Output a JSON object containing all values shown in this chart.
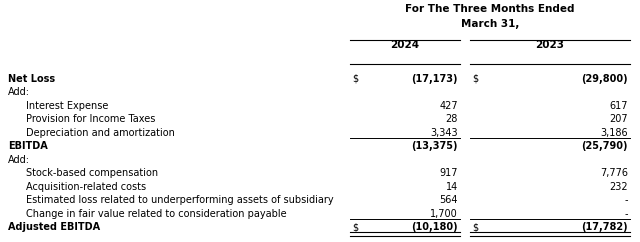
{
  "title_line1": "For The Three Months Ended",
  "title_line2": "March 31,",
  "col_headers": [
    "2024",
    "2023"
  ],
  "rows": [
    {
      "label": "Net Loss",
      "bold": true,
      "indent": 0,
      "val2024": "(17,173)",
      "val2023": "(29,800)",
      "dollar2024": true,
      "dollar2023": true,
      "line_below": false
    },
    {
      "label": "Add:",
      "bold": false,
      "indent": 0,
      "val2024": "",
      "val2023": "",
      "dollar2024": false,
      "dollar2023": false,
      "line_below": false
    },
    {
      "label": "Interest Expense",
      "bold": false,
      "indent": 1,
      "val2024": "427",
      "val2023": "617",
      "dollar2024": false,
      "dollar2023": false,
      "line_below": false
    },
    {
      "label": "Provision for Income Taxes",
      "bold": false,
      "indent": 1,
      "val2024": "28",
      "val2023": "207",
      "dollar2024": false,
      "dollar2023": false,
      "line_below": false
    },
    {
      "label": "Depreciation and amortization",
      "bold": false,
      "indent": 1,
      "val2024": "3,343",
      "val2023": "3,186",
      "dollar2024": false,
      "dollar2023": false,
      "line_below": true
    },
    {
      "label": "EBITDA",
      "bold": true,
      "indent": 0,
      "val2024": "(13,375)",
      "val2023": "(25,790)",
      "dollar2024": false,
      "dollar2023": false,
      "line_below": false
    },
    {
      "label": "Add:",
      "bold": false,
      "indent": 0,
      "val2024": "",
      "val2023": "",
      "dollar2024": false,
      "dollar2023": false,
      "line_below": false
    },
    {
      "label": "Stock-based compensation",
      "bold": false,
      "indent": 1,
      "val2024": "917",
      "val2023": "7,776",
      "dollar2024": false,
      "dollar2023": false,
      "line_below": false
    },
    {
      "label": "Acquisition-related costs",
      "bold": false,
      "indent": 1,
      "val2024": "14",
      "val2023": "232",
      "dollar2024": false,
      "dollar2023": false,
      "line_below": false
    },
    {
      "label": "Estimated loss related to underperforming assets of subsidiary",
      "bold": false,
      "indent": 1,
      "val2024": "564",
      "val2023": "-",
      "dollar2024": false,
      "dollar2023": false,
      "line_below": false
    },
    {
      "label": "Change in fair value related to consideration payable",
      "bold": false,
      "indent": 1,
      "val2024": "1,700",
      "val2023": "-",
      "dollar2024": false,
      "dollar2023": false,
      "line_below": true
    },
    {
      "label": "Adjusted EBITDA",
      "bold": true,
      "indent": 0,
      "val2024": "(10,180)",
      "val2023": "(17,782)",
      "dollar2024": true,
      "dollar2023": true,
      "line_below": false
    }
  ],
  "bg_color": "#ffffff",
  "text_color": "#000000",
  "font_size": 7.0,
  "header_font_size": 7.5,
  "fig_width": 6.4,
  "fig_height": 2.42,
  "dpi": 100
}
